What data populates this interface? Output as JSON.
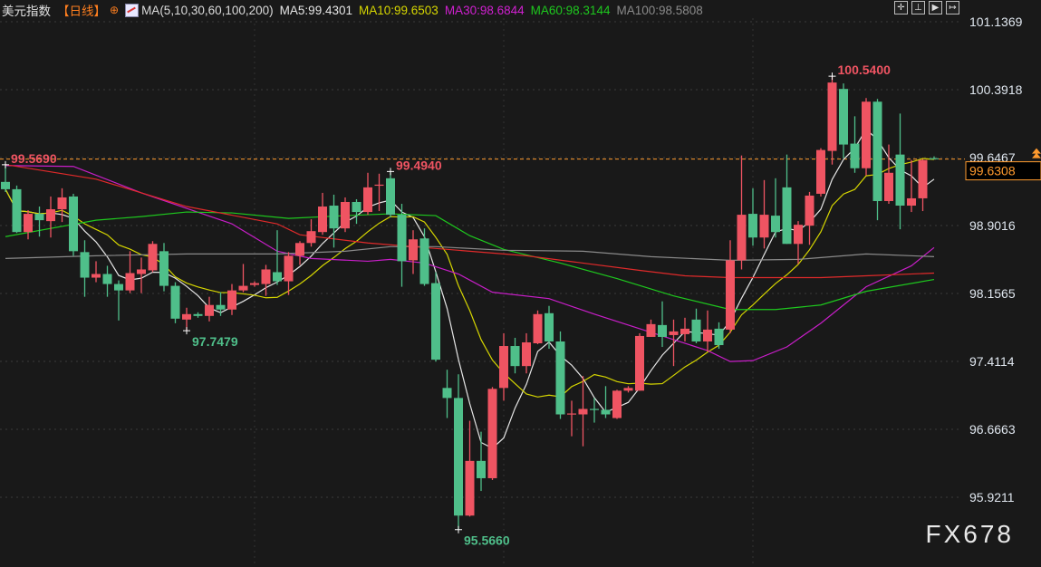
{
  "header": {
    "title": "美元指数",
    "period": "【日线】",
    "period_icon": "circle-plus-icon",
    "ma_settings": "MA(5,10,30,60,100,200)",
    "ma_values": [
      {
        "label": "MA5:99.4301",
        "color": "#e6e6e6"
      },
      {
        "label": "MA10:99.6503",
        "color": "#d6d600"
      },
      {
        "label": "MA30:98.6844",
        "color": "#d020d0"
      },
      {
        "label": "MA60:98.3144",
        "color": "#1ec81e"
      },
      {
        "label": "MA100:98.5808",
        "color": "#8a8a8a"
      }
    ]
  },
  "toolbar": {
    "icons": [
      "crosshair-icon",
      "zoom-range-icon",
      "play-icon",
      "exit-icon"
    ]
  },
  "watermark": "FX678",
  "colors": {
    "up": "#ef5462",
    "down": "#4fbf8a",
    "background": "#191919",
    "last_price": "#ff9a2e"
  },
  "chart_data": {
    "type": "candlestick",
    "ylim": [
      95.45,
      101.25
    ],
    "y_ticks": [
      "101.1369",
      "100.3918",
      "99.6467",
      "98.9016",
      "98.1565",
      "97.4114",
      "96.6663",
      "95.9211"
    ],
    "last_price": "99.6308",
    "grid": true,
    "candles_ohlc": [
      [
        99.38,
        99.57,
        99.27,
        99.3
      ],
      [
        99.3,
        99.34,
        98.82,
        98.83
      ],
      [
        98.83,
        99.07,
        98.75,
        99.03
      ],
      [
        99.03,
        99.11,
        98.78,
        98.96
      ],
      [
        98.95,
        99.22,
        98.77,
        99.08
      ],
      [
        99.08,
        99.31,
        98.94,
        99.21
      ],
      [
        99.22,
        99.25,
        98.57,
        98.62
      ],
      [
        98.61,
        98.74,
        98.12,
        98.33
      ],
      [
        98.33,
        98.51,
        98.28,
        98.37
      ],
      [
        98.37,
        98.46,
        98.12,
        98.26
      ],
      [
        98.26,
        98.3,
        97.86,
        98.19
      ],
      [
        98.19,
        98.62,
        98.16,
        98.38
      ],
      [
        98.37,
        98.55,
        98.16,
        98.42
      ],
      [
        98.41,
        98.73,
        98.39,
        98.7
      ],
      [
        98.62,
        98.71,
        98.18,
        98.24
      ],
      [
        98.24,
        98.28,
        97.83,
        97.88
      ],
      [
        97.87,
        98.0,
        97.7479,
        97.93
      ],
      [
        97.93,
        97.95,
        97.89,
        97.91
      ],
      [
        97.91,
        98.12,
        97.85,
        98.03
      ],
      [
        98.03,
        98.17,
        97.91,
        97.98
      ],
      [
        97.98,
        98.26,
        97.92,
        98.19
      ],
      [
        98.19,
        98.48,
        98.17,
        98.24
      ],
      [
        98.25,
        98.29,
        98.23,
        98.27
      ],
      [
        98.26,
        98.47,
        98.13,
        98.42
      ],
      [
        98.39,
        98.85,
        98.25,
        98.29
      ],
      [
        98.29,
        98.61,
        98.14,
        98.57
      ],
      [
        98.57,
        98.73,
        98.47,
        98.71
      ],
      [
        98.71,
        98.97,
        98.67,
        98.84
      ],
      [
        98.83,
        99.26,
        98.8,
        99.11
      ],
      [
        99.12,
        99.24,
        98.66,
        98.87
      ],
      [
        98.87,
        99.21,
        98.83,
        99.16
      ],
      [
        99.16,
        99.19,
        98.92,
        99.05
      ],
      [
        99.05,
        99.48,
        99.02,
        99.32
      ],
      [
        99.34,
        99.47,
        99.06,
        99.35
      ],
      [
        99.42,
        99.494,
        98.99,
        99.02
      ],
      [
        99.02,
        99.14,
        98.23,
        98.51
      ],
      [
        98.52,
        98.85,
        98.37,
        98.75
      ],
      [
        98.76,
        98.87,
        98.24,
        98.26
      ],
      [
        98.27,
        98.39,
        97.41,
        97.43
      ],
      [
        97.12,
        97.32,
        96.79,
        97.01
      ],
      [
        97.01,
        97.27,
        95.566,
        95.72
      ],
      [
        95.72,
        96.76,
        95.71,
        96.32
      ],
      [
        96.32,
        96.64,
        95.99,
        96.13
      ],
      [
        96.13,
        97.13,
        96.11,
        97.11
      ],
      [
        97.12,
        97.72,
        96.98,
        97.58
      ],
      [
        97.58,
        97.67,
        97.28,
        97.36
      ],
      [
        97.36,
        97.72,
        97.28,
        97.62
      ],
      [
        97.61,
        97.97,
        97.6,
        97.93
      ],
      [
        97.94,
        98.02,
        97.55,
        97.63
      ],
      [
        97.63,
        97.74,
        96.78,
        96.83
      ],
      [
        96.83,
        96.98,
        96.59,
        96.84
      ],
      [
        96.83,
        97.25,
        96.48,
        96.89
      ],
      [
        96.89,
        97.01,
        96.74,
        96.88
      ],
      [
        96.88,
        97.14,
        96.79,
        96.83
      ],
      [
        96.79,
        97.1,
        96.78,
        97.09
      ],
      [
        97.09,
        97.14,
        97.07,
        97.12
      ],
      [
        97.09,
        97.72,
        97.09,
        97.69
      ],
      [
        97.68,
        97.87,
        97.68,
        97.82
      ],
      [
        97.81,
        98.07,
        97.57,
        97.68
      ],
      [
        97.7,
        97.87,
        97.36,
        97.74
      ],
      [
        97.71,
        97.89,
        97.63,
        97.77
      ],
      [
        97.87,
        97.99,
        97.61,
        97.63
      ],
      [
        97.63,
        97.97,
        97.52,
        97.76
      ],
      [
        97.77,
        97.84,
        97.55,
        97.59
      ],
      [
        97.76,
        98.74,
        97.72,
        98.52
      ],
      [
        98.52,
        99.67,
        98.42,
        99.02
      ],
      [
        99.03,
        99.31,
        98.68,
        98.77
      ],
      [
        98.77,
        99.4,
        98.65,
        99.02
      ],
      [
        99.01,
        99.42,
        98.77,
        98.83
      ],
      [
        99.32,
        99.68,
        98.7,
        98.7
      ],
      [
        98.7,
        98.95,
        98.48,
        98.91
      ],
      [
        98.9,
        99.27,
        98.69,
        99.23
      ],
      [
        99.25,
        99.75,
        99.22,
        99.73
      ],
      [
        99.72,
        100.54,
        99.57,
        100.47
      ],
      [
        100.4,
        100.46,
        99.64,
        99.79
      ],
      [
        99.8,
        100.1,
        99.48,
        99.53
      ],
      [
        99.53,
        100.3,
        99.45,
        100.26
      ],
      [
        100.26,
        100.29,
        98.96,
        99.17
      ],
      [
        99.17,
        99.79,
        99.14,
        99.48
      ],
      [
        99.68,
        100.13,
        98.86,
        99.12
      ],
      [
        99.12,
        99.62,
        99.05,
        99.2
      ],
      [
        99.2,
        99.63,
        99.06,
        99.62
      ],
      [
        99.64,
        99.66,
        99.63,
        99.6308
      ]
    ],
    "extreme_labels": [
      {
        "index": 0,
        "text": "99.5690",
        "value": 99.569,
        "kind": "high"
      },
      {
        "index": 34,
        "text": "99.4940",
        "value": 99.494,
        "kind": "high"
      },
      {
        "index": 16,
        "text": "97.7479",
        "value": 97.7479,
        "kind": "low"
      },
      {
        "index": 40,
        "text": "95.5660",
        "value": 95.566,
        "kind": "low"
      },
      {
        "index": 73,
        "text": "100.5400",
        "value": 100.54,
        "kind": "high"
      }
    ],
    "moving_averages": [
      {
        "name": "MA5",
        "period": 5,
        "color": "#e6e6e6",
        "computed": true
      },
      {
        "name": "MA10",
        "period": 10,
        "color": "#d6d600",
        "computed": true
      },
      {
        "name": "MA30",
        "color": "#c81ec8",
        "points": [
          [
            0,
            99.56
          ],
          [
            6,
            99.55
          ],
          [
            12,
            99.26
          ],
          [
            16,
            99.09
          ],
          [
            20,
            98.92
          ],
          [
            24,
            98.62
          ],
          [
            27,
            98.54
          ],
          [
            32,
            98.51
          ],
          [
            34,
            98.53
          ],
          [
            37,
            98.49
          ],
          [
            40,
            98.37
          ],
          [
            43,
            98.17
          ],
          [
            48,
            98.1
          ],
          [
            52,
            97.93
          ],
          [
            57,
            97.73
          ],
          [
            62,
            97.53
          ],
          [
            64,
            97.41
          ],
          [
            66,
            97.42
          ],
          [
            69,
            97.57
          ],
          [
            72,
            97.83
          ],
          [
            76,
            98.23
          ],
          [
            80,
            98.46
          ],
          [
            82,
            98.66
          ]
        ]
      },
      {
        "name": "MA60",
        "color": "#1ec81e",
        "points": [
          [
            0,
            98.78
          ],
          [
            8,
            98.96
          ],
          [
            12,
            99.0
          ],
          [
            16,
            99.05
          ],
          [
            20,
            99.04
          ],
          [
            25,
            98.98
          ],
          [
            30,
            99.01
          ],
          [
            34,
            99.03
          ],
          [
            38,
            99.01
          ],
          [
            41,
            98.79
          ],
          [
            44,
            98.64
          ],
          [
            49,
            98.49
          ],
          [
            54,
            98.32
          ],
          [
            59,
            98.13
          ],
          [
            64,
            97.98
          ],
          [
            68,
            97.98
          ],
          [
            72,
            98.03
          ],
          [
            76,
            98.18
          ],
          [
            82,
            98.31
          ]
        ]
      },
      {
        "name": "MA100",
        "color": "#8a8a8a",
        "points": [
          [
            0,
            98.54
          ],
          [
            8,
            98.57
          ],
          [
            16,
            98.59
          ],
          [
            24,
            98.59
          ],
          [
            30,
            98.62
          ],
          [
            34,
            98.67
          ],
          [
            38,
            98.67
          ],
          [
            44,
            98.63
          ],
          [
            51,
            98.62
          ],
          [
            57,
            98.56
          ],
          [
            64,
            98.52
          ],
          [
            70,
            98.53
          ],
          [
            76,
            98.59
          ],
          [
            82,
            98.56
          ]
        ]
      },
      {
        "name": "MA200",
        "color": "#e02a2a",
        "points": [
          [
            0,
            99.57
          ],
          [
            8,
            99.41
          ],
          [
            16,
            99.11
          ],
          [
            24,
            98.92
          ],
          [
            26,
            98.8
          ],
          [
            32,
            98.71
          ],
          [
            36,
            98.67
          ],
          [
            41,
            98.62
          ],
          [
            46,
            98.57
          ],
          [
            51,
            98.49
          ],
          [
            56,
            98.41
          ],
          [
            60,
            98.35
          ],
          [
            64,
            98.33
          ],
          [
            72,
            98.33
          ],
          [
            76,
            98.35
          ],
          [
            82,
            98.38
          ]
        ]
      }
    ]
  }
}
